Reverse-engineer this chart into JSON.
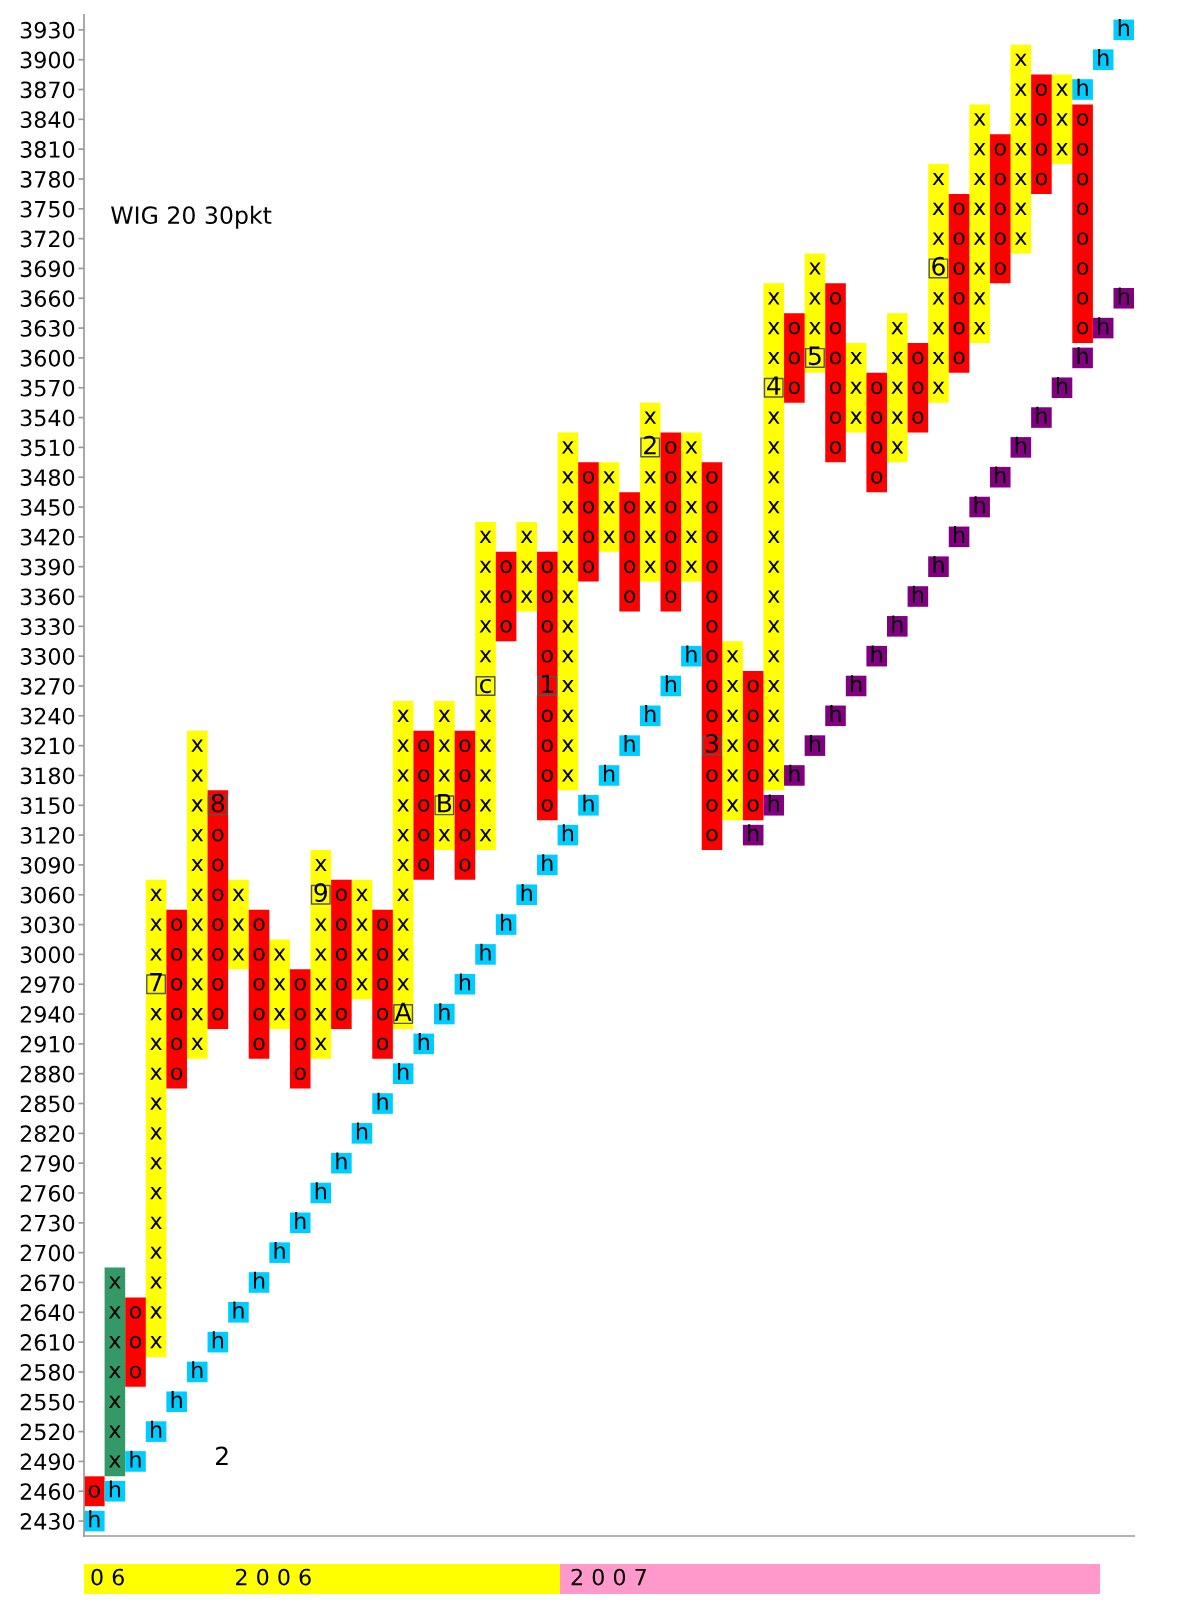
{
  "chart_data": {
    "type": "bar",
    "title": "WIG 20 30pkt",
    "categories": [
      null,
      null,
      null,
      null,
      null,
      null,
      null,
      null,
      null,
      null,
      null,
      null,
      null,
      null,
      null,
      null,
      null,
      null,
      null,
      null,
      null,
      null,
      null,
      null,
      null,
      null,
      null,
      null,
      null,
      null,
      null,
      null,
      null,
      null,
      null,
      null,
      null,
      null,
      null,
      null,
      null,
      null,
      null,
      null,
      null,
      null,
      null,
      null,
      null,
      null,
      null
    ],
    "ylim": [
      2415,
      3945
    ],
    "yticks": [
      2430,
      2460,
      2490,
      2520,
      2550,
      2580,
      2610,
      2640,
      2670,
      2700,
      2730,
      2760,
      2790,
      2820,
      2850,
      2880,
      2910,
      2940,
      2970,
      3000,
      3030,
      3060,
      3090,
      3120,
      3150,
      3180,
      3210,
      3240,
      3270,
      3300,
      3330,
      3360,
      3390,
      3420,
      3450,
      3480,
      3510,
      3540,
      3570,
      3600,
      3630,
      3660,
      3690,
      3720,
      3750,
      3780,
      3810,
      3840,
      3870,
      3900,
      3930
    ],
    "tick_labels": "y",
    "series": [
      {
        "base": [
          null,
          2475,
          null,
          2595,
          null,
          2895,
          null,
          2985,
          null,
          2925,
          null,
          2895,
          null,
          2955,
          null,
          2925,
          null,
          3105,
          null,
          3105,
          null,
          3345,
          null,
          3165,
          null,
          3405,
          null,
          3375,
          null,
          3375,
          null,
          3135,
          null,
          3165,
          null,
          3585,
          null,
          3525,
          null,
          3495,
          null,
          3555,
          null,
          3615,
          null,
          3705,
          null,
          3795,
          null,
          null,
          null
        ],
        "values": [
          null,
          210,
          null,
          480,
          null,
          330,
          null,
          90,
          null,
          90,
          null,
          210,
          null,
          120,
          null,
          330,
          null,
          150,
          null,
          330,
          null,
          90,
          null,
          360,
          null,
          90,
          null,
          180,
          null,
          150,
          null,
          180,
          null,
          510,
          null,
          120,
          null,
          90,
          null,
          150,
          null,
          240,
          null,
          240,
          null,
          210,
          null,
          90,
          null,
          null,
          null
        ],
        "colors": [
          null,
          "#339966",
          null,
          "#ffff00",
          null,
          "#ffff00",
          null,
          "#ffff00",
          null,
          "#ffff00",
          null,
          "#ffff00",
          null,
          "#ffff00",
          null,
          "#ffff00",
          null,
          "#ffff00",
          null,
          "#ffff00",
          null,
          "#ffff00",
          null,
          "#ffff00",
          null,
          "#ffff00",
          null,
          "#ffff00",
          null,
          "#ffff00",
          null,
          "#ffff00",
          null,
          "#ffff00",
          null,
          "#ffff00",
          null,
          "#ffff00",
          null,
          "#ffff00",
          null,
          "#ffff00",
          null,
          "#ffff00",
          null,
          "#ffff00",
          null,
          "#ffff00",
          null,
          null,
          null
        ],
        "value_labels": [
          null,
          "x",
          null,
          "x",
          null,
          "x",
          null,
          "x",
          null,
          "x",
          null,
          "x",
          null,
          "x",
          null,
          "x",
          null,
          "x",
          null,
          "x",
          null,
          "x",
          null,
          "x",
          null,
          "x",
          null,
          "x",
          null,
          "x",
          null,
          "x",
          null,
          "x",
          null,
          "x",
          null,
          "x",
          null,
          "x",
          null,
          "x",
          null,
          "x",
          null,
          "x",
          null,
          "x",
          null,
          null,
          null
        ]
      },
      {
        "color": "#ff0000",
        "base": [
          2445,
          null,
          2565,
          null,
          2865,
          null,
          2925,
          null,
          2895,
          null,
          2865,
          null,
          2925,
          null,
          2895,
          null,
          3075,
          null,
          3075,
          null,
          3315,
          null,
          3135,
          null,
          3375,
          null,
          3345,
          null,
          3345,
          null,
          3105,
          null,
          3135,
          null,
          3555,
          null,
          3495,
          null,
          3465,
          null,
          3525,
          null,
          3585,
          null,
          3675,
          null,
          3765,
          null,
          3615,
          null,
          null
        ],
        "values": [
          30,
          null,
          90,
          null,
          180,
          null,
          240,
          null,
          150,
          null,
          120,
          null,
          150,
          null,
          150,
          null,
          150,
          null,
          150,
          null,
          90,
          null,
          270,
          null,
          120,
          null,
          120,
          null,
          180,
          null,
          390,
          null,
          150,
          null,
          90,
          null,
          180,
          null,
          120,
          null,
          90,
          null,
          180,
          null,
          150,
          null,
          120,
          null,
          240,
          null,
          null
        ],
        "value_labels": [
          "o",
          null,
          "o",
          null,
          "o",
          null,
          "o",
          null,
          "o",
          null,
          "o",
          null,
          "o",
          null,
          "o",
          null,
          "o",
          null,
          "o",
          null,
          "o",
          null,
          "o",
          null,
          "o",
          null,
          "o",
          null,
          "o",
          null,
          "o",
          null,
          "o",
          null,
          "o",
          null,
          "o",
          null,
          "o",
          null,
          "o",
          null,
          "o",
          null,
          "o",
          null,
          "o",
          null,
          "o",
          null,
          null
        ]
      },
      {
        "type": "scatter",
        "marker": "square",
        "color": "#00ccff",
        "values": [
          2430,
          2460,
          2490,
          2520,
          2550,
          2580,
          2610,
          2640,
          2670,
          2700,
          2730,
          2760,
          2790,
          2820,
          2850,
          2880,
          2910,
          2940,
          2970,
          3000,
          3030,
          3060,
          3090,
          3120,
          3150,
          3180,
          3210,
          3240,
          3270,
          3300,
          null,
          null,
          null,
          null,
          null,
          null,
          null,
          null,
          null,
          null,
          null,
          null,
          null,
          null,
          null,
          null,
          null,
          null,
          3870,
          3900,
          3930
        ],
        "value_labels": [
          "h",
          "h",
          "h",
          "h",
          "h",
          "h",
          "h",
          "h",
          "h",
          "h",
          "h",
          "h",
          "h",
          "h",
          "h",
          "h",
          "h",
          "h",
          "h",
          "h",
          "h",
          "h",
          "h",
          "h",
          "h",
          "h",
          "h",
          "h",
          "h",
          "h",
          null,
          null,
          null,
          null,
          null,
          null,
          null,
          null,
          null,
          null,
          null,
          null,
          null,
          null,
          null,
          null,
          null,
          null,
          "h",
          "h",
          "h"
        ]
      },
      {
        "type": "scatter",
        "marker": "square",
        "color": "#800080",
        "values": [
          null,
          null,
          null,
          null,
          null,
          null,
          null,
          null,
          null,
          null,
          null,
          null,
          null,
          null,
          null,
          null,
          null,
          null,
          null,
          null,
          null,
          null,
          null,
          null,
          null,
          null,
          null,
          null,
          null,
          null,
          null,
          null,
          3120,
          3150,
          3180,
          3210,
          3240,
          3270,
          3300,
          3330,
          3360,
          3390,
          3420,
          3450,
          3480,
          3510,
          3540,
          3570,
          3600,
          3630,
          3660
        ],
        "value_labels": [
          null,
          null,
          null,
          null,
          null,
          null,
          null,
          null,
          null,
          null,
          null,
          null,
          null,
          null,
          null,
          null,
          null,
          null,
          null,
          null,
          null,
          null,
          null,
          null,
          null,
          null,
          null,
          null,
          null,
          null,
          null,
          null,
          "h",
          "h",
          "h",
          "h",
          "h",
          "h",
          "h",
          "h",
          "h",
          "h",
          "h",
          "h",
          "h",
          "h",
          "h",
          "h",
          "h",
          "h",
          "h"
        ]
      },
      {
        "type": "scatter",
        "marker": "square",
        "colors": [
          null,
          null,
          null,
          "#ffff00",
          null,
          null,
          "#ff0000",
          null,
          null,
          null,
          null,
          "#ffff00",
          null,
          null,
          null,
          "#ffff00",
          null,
          "#ffff00",
          null,
          "#ffff00",
          null,
          null,
          "#ff0000",
          null,
          null,
          null,
          null,
          "#ffff00",
          null,
          null,
          "#ff0000",
          null,
          null,
          "#ffff00",
          null,
          "#ffff00",
          null,
          null,
          null,
          null,
          null,
          "#ffff00",
          null,
          null,
          null,
          null,
          null,
          null,
          null,
          null,
          null
        ],
        "values": [
          null,
          null,
          null,
          2970,
          null,
          null,
          3150,
          null,
          null,
          null,
          null,
          3060,
          null,
          null,
          null,
          2940,
          null,
          3150,
          null,
          3270,
          null,
          null,
          3270,
          null,
          null,
          null,
          null,
          3510,
          null,
          null,
          3210,
          null,
          null,
          3570,
          null,
          3600,
          null,
          null,
          null,
          null,
          null,
          3690,
          null,
          null,
          null,
          null,
          null,
          null,
          null,
          null,
          null
        ]
      }
    ],
    "annotations": [
      "0 6",
      "2 0 0 6",
      "2 0 0 7",
      "2",
      "7",
      "8",
      "9",
      "A",
      "B",
      "c",
      "1",
      "2",
      "3",
      "4",
      "5",
      "6"
    ]
  }
}
